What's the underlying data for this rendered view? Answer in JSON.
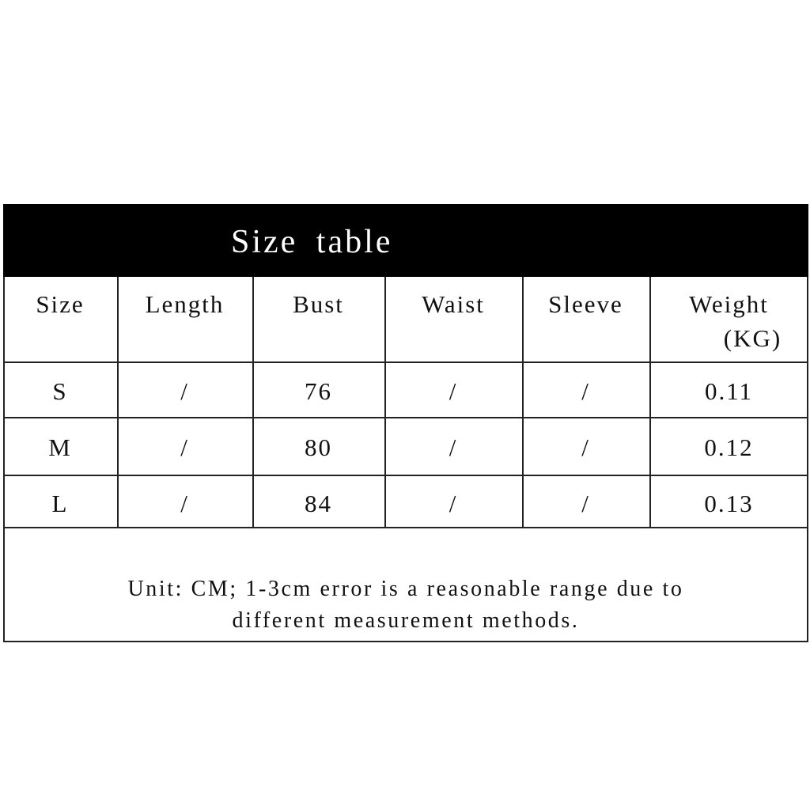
{
  "title": "Size table",
  "headers": [
    "Size",
    "Length",
    "Bust",
    "Waist",
    "Sleeve",
    "Weight"
  ],
  "weight_unit": "(KG)",
  "rows": [
    [
      "S",
      "/",
      "76",
      "/",
      "/",
      "0.11"
    ],
    [
      "M",
      "/",
      "80",
      "/",
      "/",
      "0.12"
    ],
    [
      "L",
      "/",
      "84",
      "/",
      "/",
      "0.13"
    ]
  ],
  "note_line1": "Unit: CM; 1-3cm error is a reasonable range due to",
  "note_line2": "different measurement methods."
}
